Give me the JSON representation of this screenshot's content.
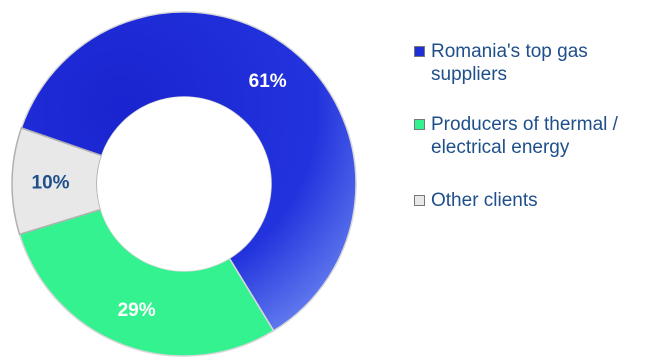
{
  "chart_data": {
    "type": "pie",
    "donut": true,
    "series": [
      {
        "name": "Romania's top gas suppliers",
        "value": 61,
        "label": "61%",
        "color": "#1f2fd6",
        "label_color": "#ffffff"
      },
      {
        "name": "Producers of thermal / electrical energy",
        "value": 29,
        "label": "29%",
        "color": "#33f28f",
        "label_color": "#ffffff"
      },
      {
        "name": "Other clients",
        "value": 10,
        "label": "10%",
        "color": "#e8e8e8",
        "label_color": "#1f4f8b"
      }
    ],
    "legend_position": "right"
  }
}
